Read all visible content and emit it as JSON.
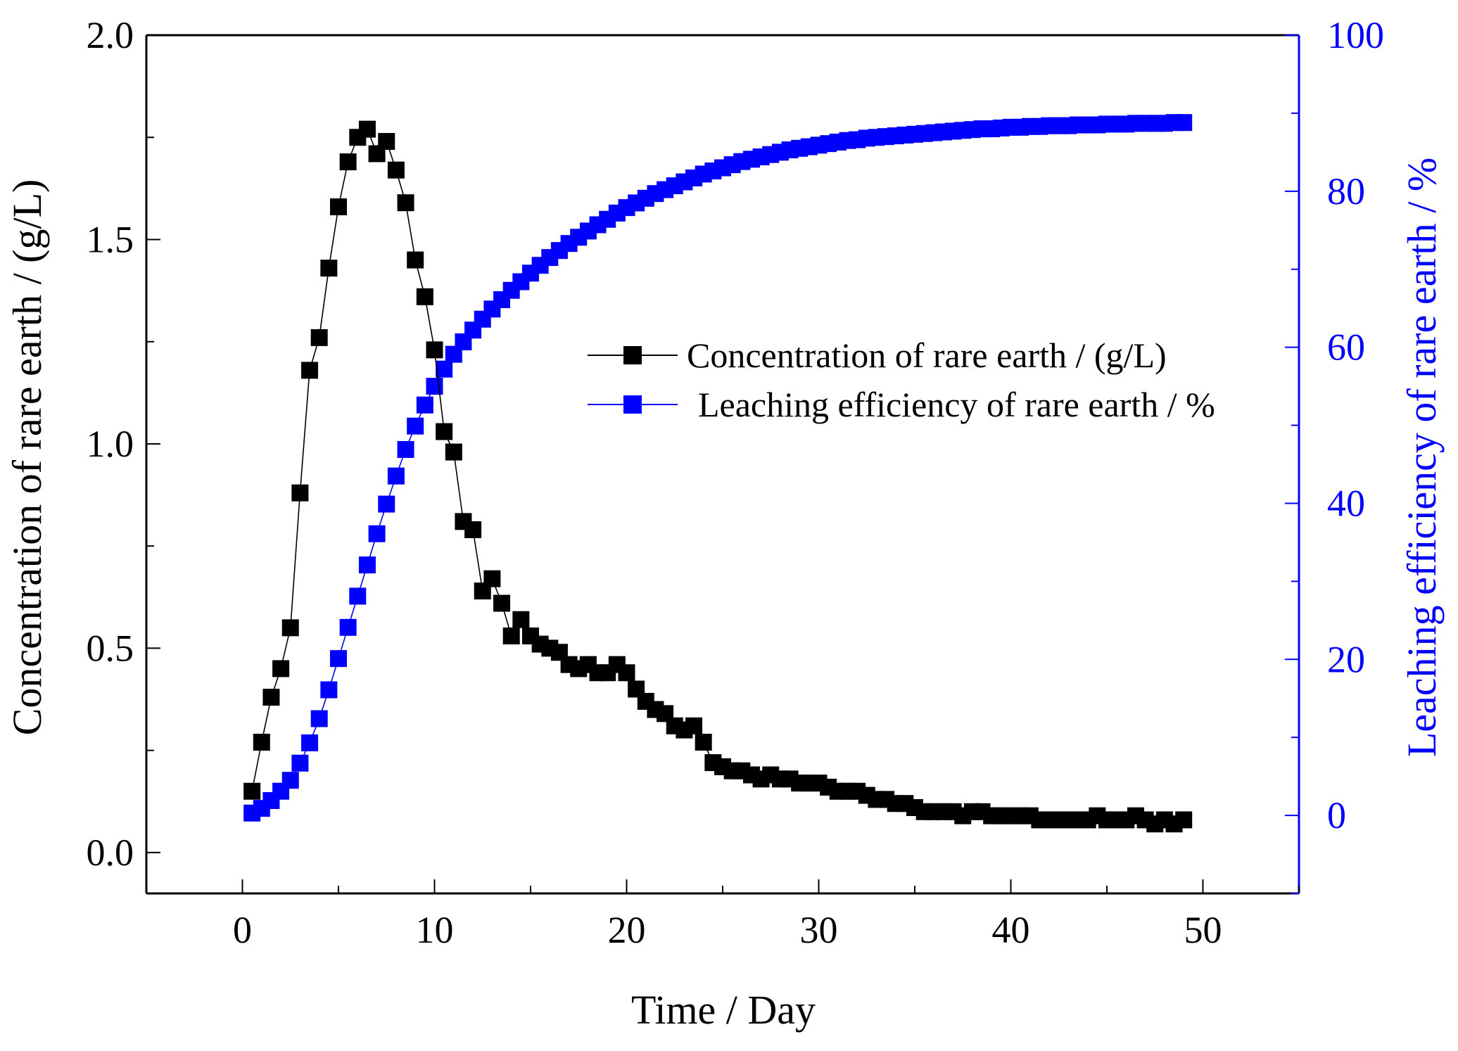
{
  "chart_data": {
    "type": "scatter",
    "title": "",
    "xlabel": "Time / Day",
    "ylabel_left": "Concentration of rare earth / (g/L)",
    "ylabel_right": "Leaching efficiency of rare earth / %",
    "xlim": [
      -5,
      55
    ],
    "ylim_left": [
      -0.1,
      2.0
    ],
    "ylim_right": [
      -10,
      100
    ],
    "x_ticks": [
      0,
      10,
      20,
      30,
      40,
      50
    ],
    "x_tick_labels": [
      "0",
      "10",
      "20",
      "30",
      "40",
      "50"
    ],
    "y_left_ticks": [
      0.0,
      0.5,
      1.0,
      1.5,
      2.0
    ],
    "y_left_tick_labels": [
      "0.0",
      "0.5",
      "1.0",
      "1.5",
      "2.0"
    ],
    "y_right_ticks": [
      0,
      20,
      40,
      60,
      80,
      100
    ],
    "y_right_tick_labels": [
      "0",
      "20",
      "40",
      "60",
      "80",
      "100"
    ],
    "grid": false,
    "legend_position": "center-right",
    "colors": {
      "concentration": "#000000",
      "efficiency": "#0000ff",
      "axis_right": "#0000ff"
    },
    "series": [
      {
        "name": "Concentration of rare earth / (g/L)",
        "axis": "left",
        "marker": "square",
        "line": "solid",
        "x": [
          0.5,
          1,
          1.5,
          2,
          2.5,
          3,
          3.5,
          4,
          4.5,
          5,
          5.5,
          6,
          6.5,
          7,
          7.5,
          8,
          8.5,
          9,
          9.5,
          10,
          10.5,
          11,
          11.5,
          12,
          12.5,
          13,
          13.5,
          14,
          14.5,
          15,
          15.5,
          16,
          16.5,
          17,
          17.5,
          18,
          18.5,
          19,
          19.5,
          20,
          20.5,
          21,
          21.5,
          22,
          22.5,
          23,
          23.5,
          24,
          24.5,
          25,
          25.5,
          26,
          26.5,
          27,
          27.5,
          28,
          28.5,
          29,
          29.5,
          30,
          30.5,
          31,
          31.5,
          32,
          32.5,
          33,
          33.5,
          34,
          34.5,
          35,
          35.5,
          36,
          36.5,
          37,
          37.5,
          38,
          38.5,
          39,
          39.5,
          40,
          40.5,
          41,
          41.5,
          42,
          42.5,
          43,
          43.5,
          44,
          44.5,
          45,
          45.5,
          46,
          46.5,
          47,
          47.5,
          48,
          48.5,
          49
        ],
        "y": [
          0.15,
          0.27,
          0.38,
          0.45,
          0.55,
          0.88,
          1.18,
          1.26,
          1.43,
          1.58,
          1.69,
          1.75,
          1.77,
          1.71,
          1.74,
          1.67,
          1.59,
          1.45,
          1.36,
          1.23,
          1.03,
          0.98,
          0.81,
          0.79,
          0.64,
          0.67,
          0.61,
          0.53,
          0.57,
          0.53,
          0.51,
          0.5,
          0.49,
          0.46,
          0.45,
          0.46,
          0.44,
          0.44,
          0.46,
          0.44,
          0.4,
          0.37,
          0.35,
          0.34,
          0.31,
          0.3,
          0.31,
          0.27,
          0.22,
          0.21,
          0.2,
          0.2,
          0.19,
          0.18,
          0.19,
          0.18,
          0.18,
          0.17,
          0.17,
          0.17,
          0.16,
          0.15,
          0.15,
          0.15,
          0.14,
          0.13,
          0.13,
          0.12,
          0.12,
          0.11,
          0.1,
          0.1,
          0.1,
          0.1,
          0.09,
          0.1,
          0.1,
          0.09,
          0.09,
          0.09,
          0.09,
          0.09,
          0.08,
          0.08,
          0.08,
          0.08,
          0.08,
          0.08,
          0.09,
          0.08,
          0.08,
          0.08,
          0.09,
          0.08,
          0.07,
          0.08,
          0.07,
          0.08
        ]
      },
      {
        "name": "Leaching efficiency of rare earth / %",
        "axis": "right",
        "marker": "square",
        "line": "solid",
        "x": [
          0.5,
          1,
          1.5,
          2,
          2.5,
          3,
          3.5,
          4,
          4.5,
          5,
          5.5,
          6,
          6.5,
          7,
          7.5,
          8,
          8.5,
          9,
          9.5,
          10,
          10.5,
          11,
          11.5,
          12,
          12.5,
          13,
          13.5,
          14,
          14.5,
          15,
          15.5,
          16,
          16.5,
          17,
          17.5,
          18,
          18.5,
          19,
          19.5,
          20,
          20.5,
          21,
          21.5,
          22,
          22.5,
          23,
          23.5,
          24,
          24.5,
          25,
          25.5,
          26,
          26.5,
          27,
          27.5,
          28,
          28.5,
          29,
          29.5,
          30,
          30.5,
          31,
          31.5,
          32,
          32.5,
          33,
          33.5,
          34,
          34.5,
          35,
          35.5,
          36,
          36.5,
          37,
          37.5,
          38,
          38.5,
          39,
          39.5,
          40,
          40.5,
          41,
          41.5,
          42,
          42.5,
          43,
          43.5,
          44,
          44.5,
          45,
          45.5,
          46,
          46.5,
          47,
          47.5,
          48,
          48.5,
          49
        ],
        "y": [
          0.3,
          0.9,
          1.9,
          3.1,
          4.5,
          6.7,
          9.3,
          12.4,
          16.1,
          20.1,
          24.1,
          28.1,
          32.1,
          36.1,
          39.9,
          43.5,
          46.9,
          49.9,
          52.6,
          55.0,
          57.2,
          59.1,
          60.7,
          62.2,
          63.6,
          64.9,
          66.1,
          67.3,
          68.4,
          69.5,
          70.5,
          71.5,
          72.4,
          73.3,
          74.1,
          74.9,
          75.7,
          76.4,
          77.2,
          77.9,
          78.5,
          79.1,
          79.7,
          80.2,
          80.7,
          81.2,
          81.7,
          82.2,
          82.6,
          83.0,
          83.4,
          83.8,
          84.1,
          84.4,
          84.7,
          85.0,
          85.3,
          85.5,
          85.7,
          85.9,
          86.1,
          86.3,
          86.5,
          86.6,
          86.8,
          86.9,
          87.0,
          87.1,
          87.2,
          87.3,
          87.4,
          87.5,
          87.6,
          87.7,
          87.8,
          87.9,
          88.0,
          88.0,
          88.1,
          88.2,
          88.2,
          88.3,
          88.3,
          88.4,
          88.4,
          88.4,
          88.5,
          88.5,
          88.5,
          88.6,
          88.6,
          88.6,
          88.7,
          88.7,
          88.7,
          88.7,
          88.8,
          88.8
        ]
      }
    ]
  }
}
